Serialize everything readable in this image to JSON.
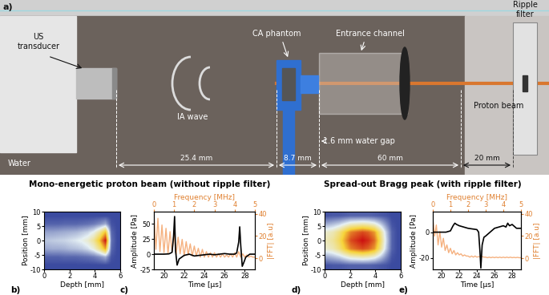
{
  "panel_a": {
    "label": "a)",
    "labels": {
      "transducer": "US\ntransducer",
      "wave": "IA wave",
      "phantom": "CA phantom",
      "channel": "Entrance channel",
      "filter": "Ripple\nfilter",
      "beam": "Proton beam",
      "medium": "Water",
      "gap": "1.6 mm water gap"
    },
    "distances": [
      "25.4 mm",
      "8.7 mm",
      "60 mm",
      "20 mm"
    ]
  },
  "row_titles": [
    "Mono-energetic proton beam (without ripple filter)",
    "Spread-out Bragg peak (with ripple filter)"
  ],
  "chart_data": [
    {
      "type": "heatmap",
      "panel_label": "b)",
      "xlabel": "Depth [mm]",
      "ylabel": "Position [mm]",
      "xlim": [
        0,
        6
      ],
      "xticks": [
        0,
        2,
        4,
        6
      ],
      "ylim": [
        -10,
        10
      ],
      "yticks": [
        -10,
        -5,
        0,
        5,
        10
      ],
      "value_range": [
        0,
        1
      ],
      "cells": [
        [
          0,
          0,
          0,
          0,
          0,
          0,
          0,
          0,
          0,
          0,
          0,
          0,
          0
        ],
        [
          0.05,
          0.05,
          0.05,
          0.06,
          0.06,
          0.06,
          0.07,
          0.08,
          0.1,
          0.14,
          0.2,
          0.02,
          0
        ],
        [
          0.18,
          0.18,
          0.19,
          0.2,
          0.21,
          0.22,
          0.25,
          0.28,
          0.35,
          0.49,
          0.7,
          0.06,
          0
        ],
        [
          0.25,
          0.26,
          0.27,
          0.28,
          0.3,
          0.32,
          0.35,
          0.4,
          0.5,
          0.7,
          1.0,
          0.08,
          0
        ],
        [
          0.19,
          0.2,
          0.2,
          0.21,
          0.23,
          0.24,
          0.26,
          0.3,
          0.38,
          0.53,
          0.75,
          0.06,
          0
        ],
        [
          0.05,
          0.05,
          0.05,
          0.06,
          0.06,
          0.06,
          0.07,
          0.08,
          0.1,
          0.14,
          0.2,
          0.02,
          0
        ],
        [
          0,
          0,
          0,
          0,
          0,
          0,
          0,
          0,
          0,
          0,
          0,
          0,
          0
        ]
      ]
    },
    {
      "type": "line",
      "panel_label": "c)",
      "xlabel": "Time [µs]",
      "ylabel": "Amplitude [Pa]",
      "xlim": [
        19,
        29
      ],
      "xticks": [
        20,
        22,
        24,
        26,
        28
      ],
      "ylim": [
        -25,
        70
      ],
      "yticks": [
        -25,
        0,
        25,
        50
      ],
      "x2label": "Frequency [MHz]",
      "x2lim": [
        0,
        5
      ],
      "x2ticks": [
        0,
        1,
        2,
        3,
        4,
        5
      ],
      "y2label": "|FFT| [a.u]",
      "y2lim": [
        -10,
        42
      ],
      "y2ticks": [
        0,
        20,
        40
      ],
      "series": [
        {
          "color": "#000000",
          "x": [
            19,
            20,
            20.5,
            20.8,
            20.95,
            21.05,
            21.15,
            21.3,
            21.5,
            22,
            22.5,
            23,
            23.5,
            24,
            24.5,
            25,
            25.5,
            26,
            26.5,
            27,
            27.2,
            27.4,
            27.5,
            27.6,
            27.75,
            27.9,
            28.1,
            28.5,
            29
          ],
          "values": [
            0,
            0,
            0.5,
            3,
            30,
            62,
            5,
            -18,
            -8,
            -2,
            0,
            -3,
            -2,
            -1,
            0,
            -1,
            0,
            1,
            0,
            0,
            2,
            20,
            45,
            15,
            -20,
            -14,
            -5,
            0,
            0
          ]
        },
        {
          "color": "#f4a46a",
          "axis": "y2",
          "x": [
            0,
            0.1,
            0.2,
            0.3,
            0.4,
            0.5,
            0.6,
            0.7,
            0.8,
            0.9,
            1.0,
            1.1,
            1.2,
            1.3,
            1.4,
            1.5,
            1.6,
            1.7,
            1.8,
            1.9,
            2.0,
            2.1,
            2.2,
            2.3,
            2.4,
            2.5,
            2.6,
            2.7,
            2.8,
            2.9,
            3.0,
            3.1,
            3.2,
            3.3,
            3.4,
            3.5,
            3.6,
            3.7,
            3.8,
            3.9,
            4.0,
            4.1,
            4.2,
            4.3,
            4.4,
            4.5,
            4.6,
            4.7,
            4.8,
            4.9,
            5.0
          ],
          "values": [
            40,
            8,
            36,
            6,
            30,
            5,
            27,
            4,
            24,
            6,
            22,
            3,
            19,
            4,
            17,
            2,
            15,
            3,
            13,
            2,
            11,
            2,
            9,
            1,
            8,
            1,
            6,
            1,
            5,
            1,
            5,
            1,
            4,
            1,
            4,
            1,
            3,
            1,
            4,
            1,
            5,
            1,
            6,
            1,
            4,
            1,
            3,
            1,
            2,
            1,
            1
          ]
        }
      ]
    },
    {
      "type": "heatmap",
      "panel_label": "d)",
      "xlabel": "Depth [mm]",
      "ylabel": "Position [mm]",
      "xlim": [
        0,
        6
      ],
      "xticks": [
        0,
        2,
        4,
        6
      ],
      "ylim": [
        -10,
        10
      ],
      "yticks": [
        -10,
        -5,
        0,
        5,
        10
      ],
      "value_range": [
        0,
        1
      ],
      "cells": [
        [
          0.02,
          0.03,
          0.03,
          0.04,
          0.05,
          0.05,
          0.05,
          0.05,
          0.04,
          0.03,
          0.02,
          0,
          0
        ],
        [
          0.2,
          0.23,
          0.27,
          0.34,
          0.41,
          0.43,
          0.45,
          0.43,
          0.38,
          0.27,
          0.14,
          0.02,
          0
        ],
        [
          0.41,
          0.45,
          0.54,
          0.68,
          0.81,
          0.86,
          0.9,
          0.86,
          0.77,
          0.54,
          0.27,
          0.05,
          0
        ],
        [
          0.45,
          0.5,
          0.6,
          0.75,
          0.9,
          0.95,
          1.0,
          0.95,
          0.85,
          0.6,
          0.3,
          0.05,
          0
        ],
        [
          0.41,
          0.45,
          0.54,
          0.68,
          0.81,
          0.86,
          0.9,
          0.86,
          0.77,
          0.54,
          0.27,
          0.05,
          0
        ],
        [
          0.2,
          0.23,
          0.27,
          0.34,
          0.41,
          0.43,
          0.45,
          0.43,
          0.38,
          0.27,
          0.14,
          0.02,
          0
        ],
        [
          0.02,
          0.03,
          0.03,
          0.04,
          0.05,
          0.05,
          0.05,
          0.05,
          0.04,
          0.03,
          0.02,
          0,
          0
        ]
      ]
    },
    {
      "type": "line",
      "panel_label": "e)",
      "xlabel": "Time [µs]",
      "ylabel": "Amplitude [Pa]",
      "xlim": [
        19,
        29
      ],
      "xticks": [
        20,
        22,
        24,
        26,
        28
      ],
      "ylim": [
        -29,
        16
      ],
      "yticks": [
        -20,
        0
      ],
      "x2label": "Frequency [MHz]",
      "x2lim": [
        0,
        5
      ],
      "x2ticks": [
        0,
        1,
        2,
        3,
        4,
        5
      ],
      "y2label": "|FFT| [a.u]",
      "y2lim": [
        -10,
        42
      ],
      "y2ticks": [
        0,
        20,
        40
      ],
      "series": [
        {
          "color": "#000000",
          "x": [
            19,
            20,
            20.5,
            21,
            21.3,
            21.5,
            21.7,
            22,
            22.5,
            23,
            23.5,
            24,
            24.2,
            24.35,
            24.45,
            24.6,
            24.8,
            25,
            25.5,
            26,
            26.5,
            27,
            27.3,
            27.5,
            27.7,
            28,
            28.5,
            29
          ],
          "values": [
            0,
            0,
            0,
            1,
            5,
            7,
            6,
            5,
            4,
            3,
            2.5,
            2,
            0,
            -15,
            -28,
            -10,
            -4,
            -3,
            0,
            3,
            4,
            5,
            4,
            7,
            5,
            6,
            3,
            3
          ]
        },
        {
          "color": "#f4a46a",
          "axis": "y2",
          "x": [
            0,
            0.1,
            0.2,
            0.3,
            0.4,
            0.5,
            0.6,
            0.7,
            0.8,
            0.9,
            1.0,
            1.1,
            1.2,
            1.3,
            1.4,
            1.5,
            1.6,
            1.7,
            1.8,
            1.9,
            2.0,
            2.1,
            2.2,
            2.3,
            2.4,
            2.5,
            2.6,
            2.7,
            2.8,
            2.9,
            3.0,
            3.1,
            3.2,
            3.3,
            3.4,
            3.5,
            3.6,
            3.7,
            3.8,
            3.9,
            4.0,
            4.1,
            4.2,
            4.3,
            4.4,
            4.5,
            4.6,
            4.7,
            4.8,
            4.9,
            5.0
          ],
          "values": [
            36,
            20,
            30,
            12,
            24,
            10,
            18,
            7,
            12,
            5,
            9,
            4,
            7,
            3,
            5,
            3,
            4,
            2,
            3,
            2,
            2,
            1,
            2,
            1,
            2,
            1,
            1.5,
            1,
            1.5,
            1,
            1,
            0.5,
            1,
            0.5,
            1,
            0.5,
            1,
            0.5,
            1,
            0.5,
            1,
            0.5,
            1,
            0.5,
            1,
            0.5,
            0.8,
            0.5,
            0.8,
            0.5,
            0.5
          ]
        }
      ]
    }
  ]
}
